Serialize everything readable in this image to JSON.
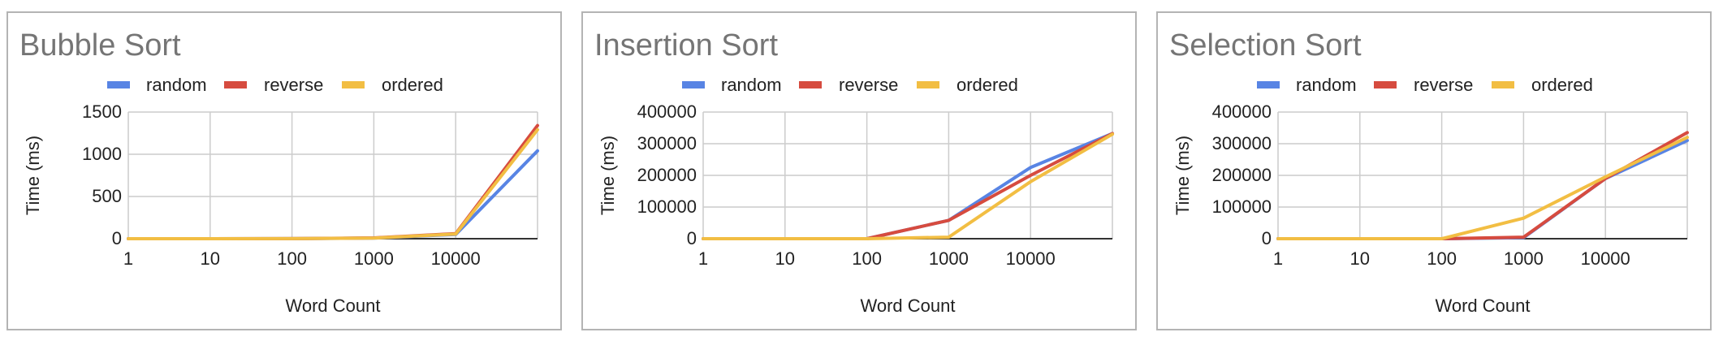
{
  "chart_data": [
    {
      "type": "line",
      "title": "Bubble Sort",
      "xlabel": "Word Count",
      "ylabel": "Time (ms)",
      "x": [
        1,
        10,
        100,
        1000,
        10000,
        100000
      ],
      "x_ticks": [
        "1",
        "10",
        "100",
        "1000",
        "10000"
      ],
      "y_ticks": [
        "1500",
        "1000",
        "500",
        "0"
      ],
      "ylim": [
        0,
        1500
      ],
      "legend_position": "top",
      "grid": true,
      "series": [
        {
          "name": "random",
          "color": "#5884e4",
          "values": [
            0,
            0,
            1,
            8,
            50,
            1040
          ]
        },
        {
          "name": "reverse",
          "color": "#d64b3f",
          "values": [
            0,
            0,
            1,
            10,
            60,
            1340
          ]
        },
        {
          "name": "ordered",
          "color": "#f2be43",
          "values": [
            0,
            0,
            1,
            8,
            55,
            1290
          ]
        }
      ]
    },
    {
      "type": "line",
      "title": "Insertion Sort",
      "xlabel": "Word Count",
      "ylabel": "Time (ms)",
      "x": [
        1,
        10,
        100,
        1000,
        10000,
        100000
      ],
      "x_ticks": [
        "1",
        "10",
        "100",
        "1000",
        "10000"
      ],
      "y_ticks": [
        "400000",
        "300000",
        "200000",
        "100000",
        "0"
      ],
      "ylim": [
        0,
        400000
      ],
      "legend_position": "top",
      "grid": true,
      "series": [
        {
          "name": "random",
          "color": "#5884e4",
          "values": [
            0,
            0,
            100,
            58000,
            225000,
            332000
          ]
        },
        {
          "name": "reverse",
          "color": "#d64b3f",
          "values": [
            0,
            0,
            100,
            58000,
            200000,
            332000
          ]
        },
        {
          "name": "ordered",
          "color": "#f2be43",
          "values": [
            0,
            0,
            100,
            5000,
            180000,
            330000
          ]
        }
      ]
    },
    {
      "type": "line",
      "title": "Selection Sort",
      "xlabel": "Word Count",
      "ylabel": "Time (ms)",
      "x": [
        1,
        10,
        100,
        1000,
        10000,
        100000
      ],
      "x_ticks": [
        "1",
        "10",
        "100",
        "1000",
        "10000"
      ],
      "y_ticks": [
        "400000",
        "300000",
        "200000",
        "100000",
        "0"
      ],
      "ylim": [
        0,
        400000
      ],
      "legend_position": "top",
      "grid": true,
      "series": [
        {
          "name": "random",
          "color": "#5884e4",
          "values": [
            0,
            0,
            100,
            3000,
            190000,
            310000
          ]
        },
        {
          "name": "reverse",
          "color": "#d64b3f",
          "values": [
            0,
            0,
            100,
            5000,
            190000,
            335000
          ]
        },
        {
          "name": "ordered",
          "color": "#f2be43",
          "values": [
            0,
            0,
            100,
            65000,
            195000,
            320000
          ]
        }
      ]
    }
  ]
}
